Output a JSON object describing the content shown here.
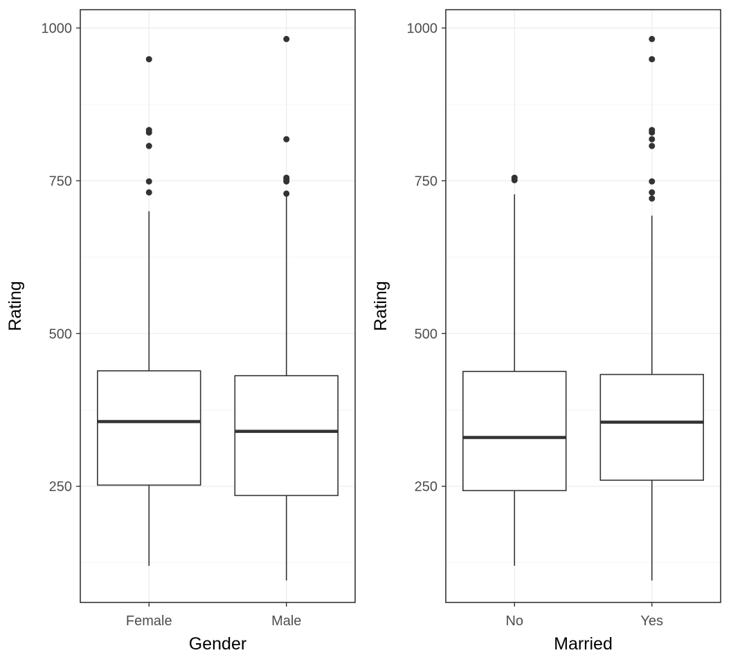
{
  "chart_data": [
    {
      "type": "box",
      "xlabel": "Gender",
      "ylabel": "Rating",
      "ylim": [
        60,
        1030
      ],
      "yticks": [
        250,
        500,
        750,
        1000
      ],
      "ytick_labels": [
        "250",
        "500",
        "750",
        "1000"
      ],
      "grid": true,
      "categories": [
        "Female",
        "Male"
      ],
      "boxes": [
        {
          "category": "Female",
          "whisker_low": 120,
          "q1": 252,
          "median": 356,
          "q3": 439,
          "whisker_high": 700,
          "outliers": [
            731,
            749,
            807,
            829,
            833,
            949
          ]
        },
        {
          "category": "Male",
          "whisker_low": 96,
          "q1": 235,
          "median": 340,
          "q3": 431,
          "whisker_high": 725,
          "outliers": [
            729,
            749,
            752,
            755,
            818,
            982
          ]
        }
      ]
    },
    {
      "type": "box",
      "xlabel": "Married",
      "ylabel": "Rating",
      "ylim": [
        60,
        1030
      ],
      "yticks": [
        250,
        500,
        750,
        1000
      ],
      "ytick_labels": [
        "250",
        "500",
        "750",
        "1000"
      ],
      "grid": true,
      "categories": [
        "No",
        "Yes"
      ],
      "boxes": [
        {
          "category": "No",
          "whisker_low": 120,
          "q1": 243,
          "median": 330,
          "q3": 438,
          "whisker_high": 728,
          "outliers": [
            751,
            755
          ]
        },
        {
          "category": "Yes",
          "whisker_low": 96,
          "q1": 260,
          "median": 355,
          "q3": 433,
          "whisker_high": 693,
          "outliers": [
            721,
            731,
            749,
            807,
            818,
            829,
            833,
            949,
            982
          ]
        }
      ]
    }
  ],
  "colors": {
    "box_line": "#333333",
    "panel_border": "#333333",
    "grid_major": "#ebebeb",
    "grid_minor": "#f4f4f4",
    "tick_text": "#4d4d4d"
  }
}
